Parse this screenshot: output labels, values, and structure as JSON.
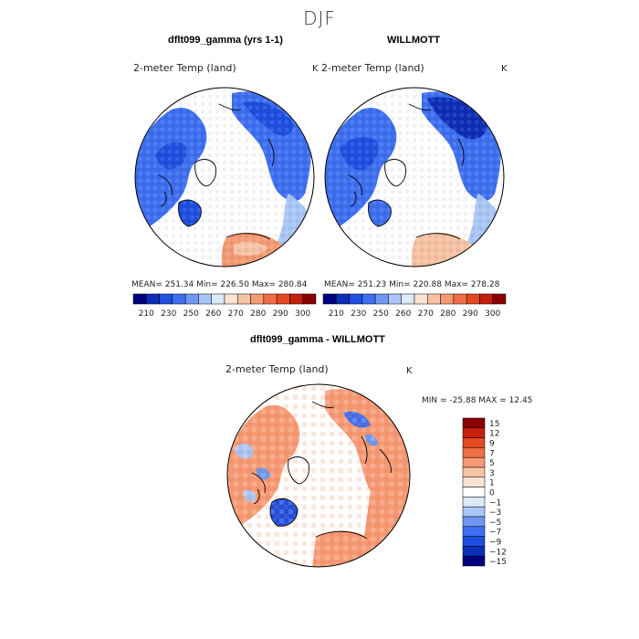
{
  "season_title": "DJF",
  "colors": {
    "land_white": "#ffffff",
    "outline": "#000000"
  },
  "panels": [
    {
      "id": "model",
      "title": "dflt099_gamma (yrs 1-1)",
      "variable": "2-meter Temp (land)",
      "unit": "K",
      "stats": "MEAN= 251.34   Min= 226.50   Max= 280.84"
    },
    {
      "id": "obs",
      "title": "WILLMOTT",
      "variable": "2-meter Temp (land)",
      "unit": "K",
      "stats": "MEAN= 251.23   Min= 220.88   Max= 278.28"
    },
    {
      "id": "diff",
      "title": "dflt099_gamma - WILLMOTT",
      "variable": "2-meter Temp (land)",
      "unit": "K",
      "stats": "MIN = -25.88 MAX =  12.45"
    }
  ],
  "abs_colorbar": {
    "colors": [
      "#00007f",
      "#0d2fb5",
      "#1f4fe0",
      "#3e6ff0",
      "#6f97f2",
      "#a9c6f6",
      "#dce9f9",
      "#fbe3d2",
      "#f7c3a5",
      "#f59a74",
      "#ef6e45",
      "#e5491f",
      "#c4200d",
      "#8b0000"
    ],
    "labels": [
      "210",
      "230",
      "250",
      "260",
      "270",
      "280",
      "290",
      "300"
    ]
  },
  "diff_colorbar": {
    "colors": [
      "#8b0000",
      "#c4200d",
      "#e5491f",
      "#ef6e45",
      "#f59a74",
      "#f7c3a5",
      "#fbe3d2",
      "#ffffff",
      "#dce9f9",
      "#a9c6f6",
      "#6f97f2",
      "#3e6ff0",
      "#1f4fe0",
      "#0d2fb5",
      "#00007f"
    ],
    "labels": [
      "15",
      "12",
      "9",
      "7",
      "5",
      "3",
      "1",
      "0",
      "−1",
      "−3",
      "−5",
      "−7",
      "−9",
      "−12",
      "−15"
    ]
  }
}
